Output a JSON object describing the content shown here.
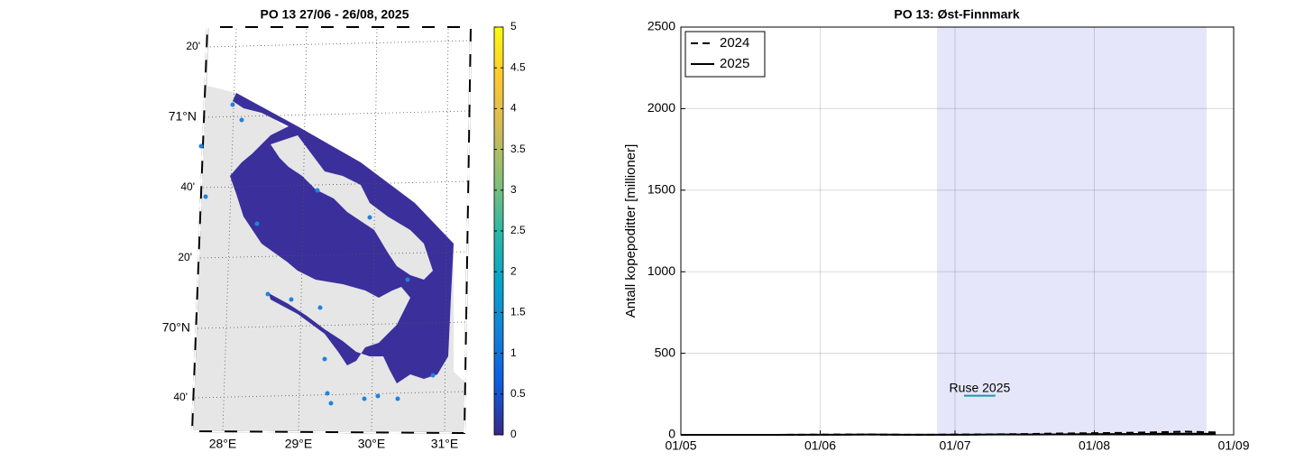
{
  "chart_data": [
    {
      "type": "map",
      "title": "PO 13  27/06 - 26/08, 2025",
      "lon_labels": [
        "28°E",
        "29°E",
        "30°E",
        "31°E"
      ],
      "lat_labels": [
        "20'",
        "71°N",
        "40'",
        "20'",
        "70°N",
        "40'"
      ],
      "clim": [
        0,
        5
      ],
      "cticks": [
        0,
        0.5,
        1,
        1.5,
        2,
        2.5,
        3,
        3.5,
        4,
        4.5,
        5
      ],
      "colormap": [
        "#352a87",
        "#0f5cdd",
        "#1481d6",
        "#06a4ca",
        "#2eb7a4",
        "#87bf77",
        "#d1bb59",
        "#fec832",
        "#f9fb0e"
      ]
    },
    {
      "type": "line",
      "title": "PO 13: Øst-Finnmark",
      "ylabel": "Antall kopepoditter [millioner]",
      "x": [
        "01/05",
        "08/05",
        "15/05",
        "22/05",
        "29/05",
        "05/06",
        "12/06",
        "19/06",
        "26/06",
        "03/07",
        "10/07",
        "17/07",
        "24/07",
        "31/07",
        "07/08",
        "14/08",
        "21/08",
        "28/08"
      ],
      "series": [
        {
          "name": "2024",
          "color": "#000000",
          "dash": true,
          "values": [
            0,
            0,
            0,
            0,
            1,
            2,
            2,
            1,
            1,
            2,
            3,
            5,
            8,
            10,
            12,
            15,
            20,
            15
          ]
        },
        {
          "name": "2025",
          "color": "#000000",
          "dash": false,
          "values": [
            0,
            0,
            0,
            0,
            1,
            1,
            2,
            1,
            1,
            1,
            2,
            2,
            3,
            4,
            5,
            6,
            7,
            6
          ]
        }
      ],
      "shade": [
        "27/06",
        "26/08"
      ],
      "shade_color": "#e6e6fa",
      "annotation": {
        "text": "Ruse 2025",
        "x": [
          "03/07",
          "10/07"
        ],
        "y": 240,
        "color": "#1b9aaa"
      },
      "xlim": [
        "01/05",
        "01/09"
      ],
      "xticks": [
        "01/05",
        "01/06",
        "01/07",
        "01/08",
        "01/09"
      ],
      "ylim": [
        0,
        2500
      ],
      "yticks": [
        0,
        500,
        1000,
        1500,
        2000,
        2500
      ],
      "grid": true,
      "legend": "top-left"
    }
  ]
}
